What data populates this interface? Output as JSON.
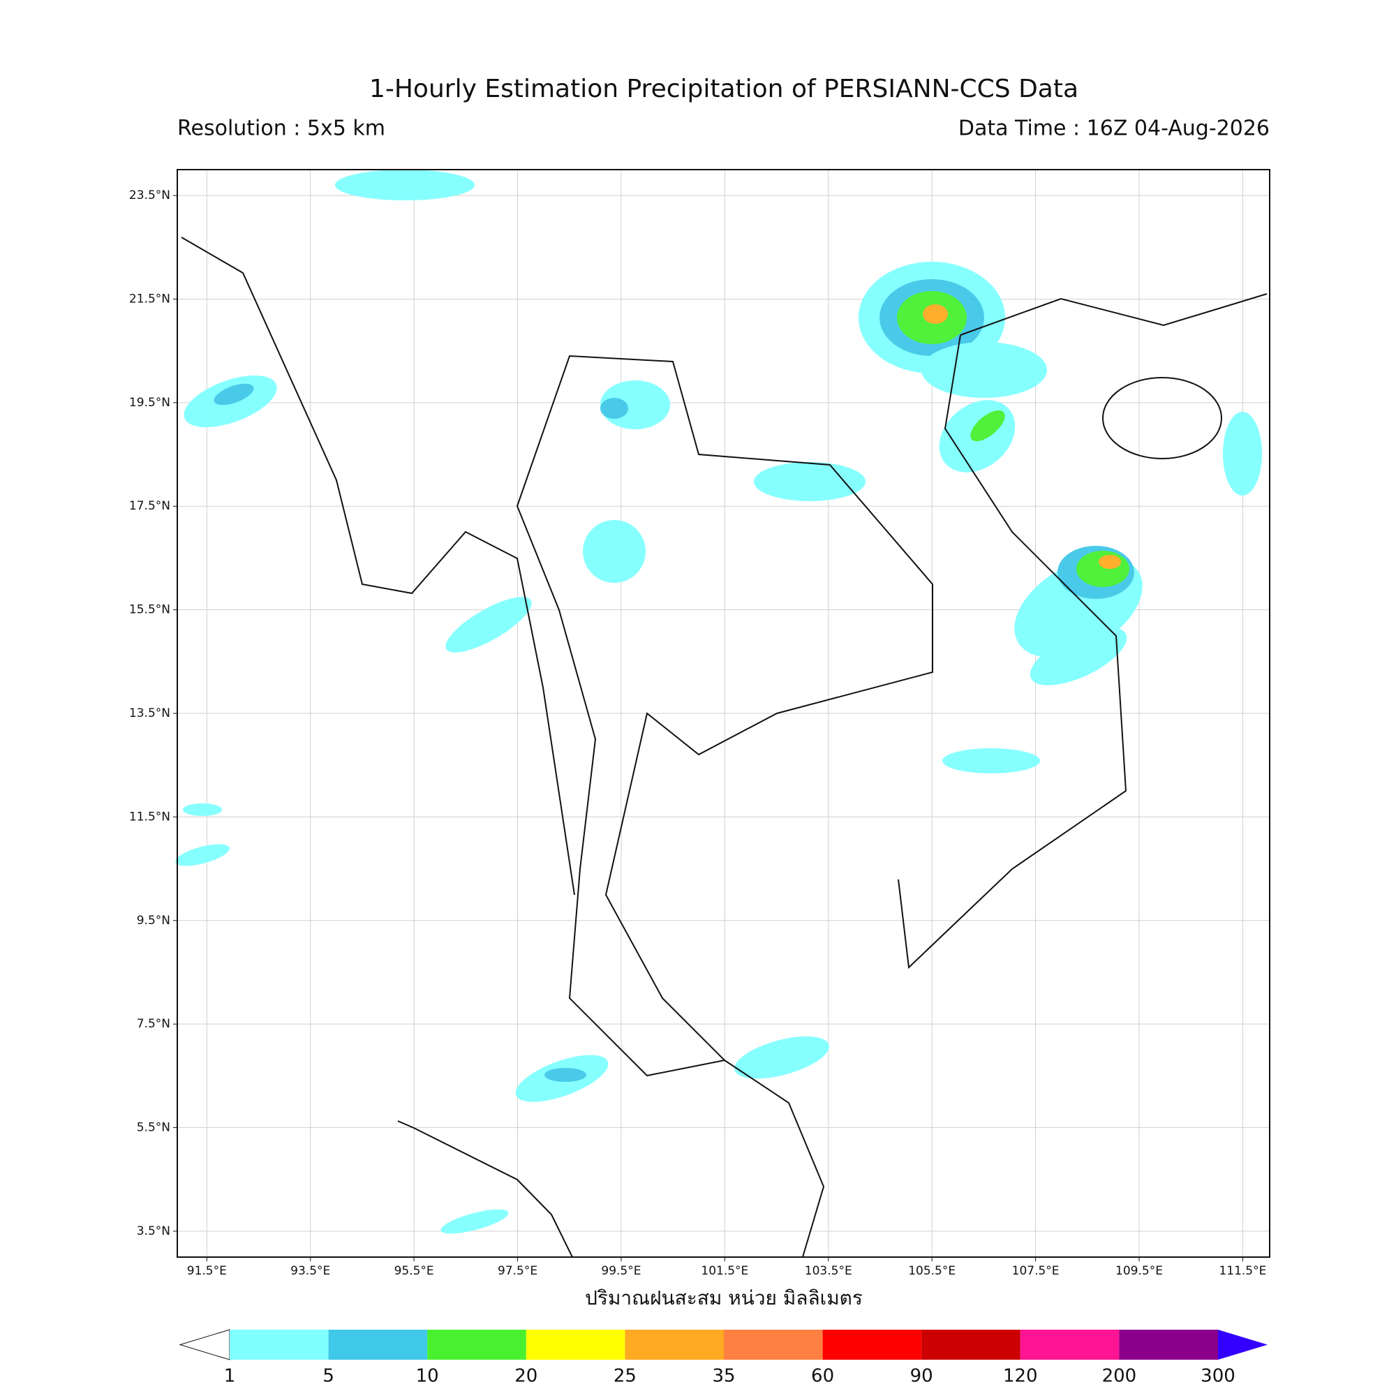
{
  "chart_data": {
    "type": "map",
    "title": "1-Hourly Estimation Precipitation of PERSIANN-CCS Data",
    "resolution": "Resolution : 5x5 km",
    "data_time": "Data Time : 16Z 04-Aug-2026",
    "xlabel": "ปริมาณฝนสะสม หน่วย มิลลิเมตร",
    "xlim": [
      90.93,
      112.02
    ],
    "ylim": [
      3.0,
      24.0
    ],
    "xticks": [
      {
        "value": 91.5,
        "label": "91.5°E"
      },
      {
        "value": 93.5,
        "label": "93.5°E"
      },
      {
        "value": 95.5,
        "label": "95.5°E"
      },
      {
        "value": 97.5,
        "label": "97.5°E"
      },
      {
        "value": 99.5,
        "label": "99.5°E"
      },
      {
        "value": 101.5,
        "label": "101.5°E"
      },
      {
        "value": 103.5,
        "label": "103.5°E"
      },
      {
        "value": 105.5,
        "label": "105.5°E"
      },
      {
        "value": 107.5,
        "label": "107.5°E"
      },
      {
        "value": 109.5,
        "label": "109.5°E"
      },
      {
        "value": 111.5,
        "label": "111.5°E"
      }
    ],
    "yticks": [
      {
        "value": 3.5,
        "label": "3.5°N"
      },
      {
        "value": 5.5,
        "label": "5.5°N"
      },
      {
        "value": 7.5,
        "label": "7.5°N"
      },
      {
        "value": 9.5,
        "label": "9.5°N"
      },
      {
        "value": 11.5,
        "label": "11.5°N"
      },
      {
        "value": 13.5,
        "label": "13.5°N"
      },
      {
        "value": 15.5,
        "label": "15.5°N"
      },
      {
        "value": 17.5,
        "label": "17.5°N"
      },
      {
        "value": 19.5,
        "label": "19.5°N"
      },
      {
        "value": 21.5,
        "label": "21.5°N"
      },
      {
        "value": 23.5,
        "label": "23.5°N"
      }
    ],
    "grid": true,
    "colorbar": {
      "levels": [
        1,
        5,
        10,
        20,
        25,
        35,
        60,
        90,
        120,
        200,
        300
      ],
      "colors": [
        "#80ffff",
        "#40c8e8",
        "#48f030",
        "#ffff00",
        "#ffaa22",
        "#ff8040",
        "#ff0000",
        "#cc0000",
        "#ff1493",
        "#8b008b"
      ],
      "under_color": "#ffffff",
      "over_color": "#3300ff"
    }
  }
}
